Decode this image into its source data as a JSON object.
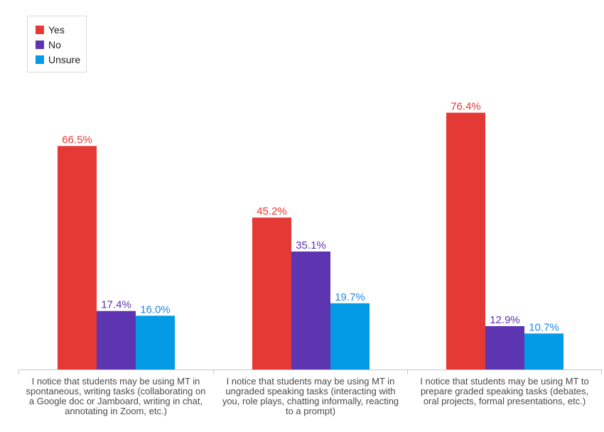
{
  "chart_data": {
    "type": "bar",
    "categories": [
      "I notice that students may be using MT in spontaneous, writing tasks (collaborating on a Google doc or Jamboard, writing in chat, annotating in Zoom, etc.)",
      "I notice that students may be using MT in ungraded speaking tasks (interacting with you, role plays, chatting informally, reacting to a prompt)",
      "I notice that students may be using MT to prepare graded speaking tasks (debates, oral projects, formal presentations, etc.)"
    ],
    "series": [
      {
        "name": "Yes",
        "color": "#e53935",
        "values": [
          66.5,
          45.2,
          76.4
        ],
        "labels": [
          "66.5%",
          "45.2%",
          "76.4%"
        ]
      },
      {
        "name": "No",
        "color": "#5e35b1",
        "values": [
          17.4,
          35.1,
          12.9
        ],
        "labels": [
          "17.4%",
          "35.1%",
          "12.9%"
        ]
      },
      {
        "name": "Unsure",
        "color": "#039be5",
        "values": [
          16.0,
          19.7,
          10.7
        ],
        "labels": [
          "16.0%",
          "19.7%",
          "10.7%"
        ]
      }
    ],
    "ylim": [
      0,
      80
    ],
    "legend_position": "top-left",
    "grid": false
  }
}
